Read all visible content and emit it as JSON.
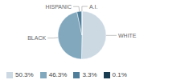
{
  "chart_data": {
    "type": "pie",
    "categories": [
      "WHITE",
      "BLACK",
      "HISPANIC",
      "A.I."
    ],
    "values": [
      50.3,
      46.3,
      3.3,
      0.1
    ],
    "value_labels": [
      "50.3%",
      "46.3%",
      "3.3%",
      "0.1%"
    ],
    "colors": [
      "#ccd9e3",
      "#82a8be",
      "#4e7e9a",
      "#1b3d52"
    ],
    "legend": "lower left"
  }
}
